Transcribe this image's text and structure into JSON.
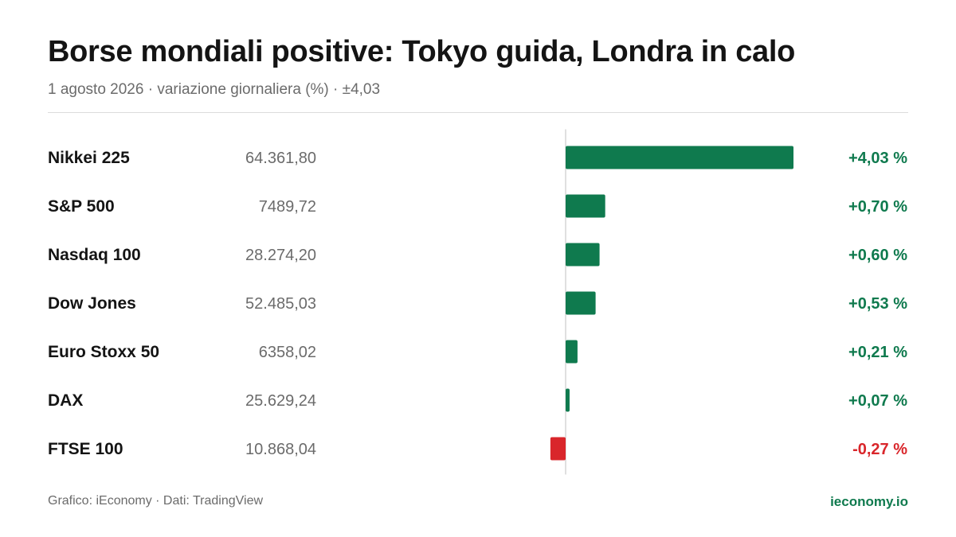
{
  "header": {
    "title": "Borse mondiali positive: Tokyo guida, Londra in calo",
    "subtitle": "1 agosto 2026 · variazione giornaliera (%) · ±4,03"
  },
  "footer": {
    "source": "Grafico: iEconomy · Dati: TradingView",
    "brand": "ieconomy.io"
  },
  "colors": {
    "positive": "#0f7a4e",
    "negative": "#d9262b",
    "axis": "#d6d6d6",
    "label": "#141414",
    "value": "#6b6b6b"
  },
  "chart_data": {
    "type": "bar",
    "orientation": "horizontal",
    "title": "Borse mondiali positive: Tokyo guida, Londra in calo",
    "subtitle": "1 agosto 2026 · variazione giornaliera (%) · ±4,03",
    "xlim": [
      -4.03,
      4.03
    ],
    "grid": false,
    "legend": "none",
    "rows": [
      {
        "index": "Nikkei 225",
        "level": "64.361,80",
        "change": 4.03,
        "change_label": "+4,03 %"
      },
      {
        "index": "S&P 500",
        "level": "7489,72",
        "change": 0.7,
        "change_label": "+0,70 %"
      },
      {
        "index": "Nasdaq 100",
        "level": "28.274,20",
        "change": 0.6,
        "change_label": "+0,60 %"
      },
      {
        "index": "Dow Jones",
        "level": "52.485,03",
        "change": 0.53,
        "change_label": "+0,53 %"
      },
      {
        "index": "Euro Stoxx 50",
        "level": "6358,02",
        "change": 0.21,
        "change_label": "+0,21 %"
      },
      {
        "index": "DAX",
        "level": "25.629,24",
        "change": 0.07,
        "change_label": "+0,07 %"
      },
      {
        "index": "FTSE 100",
        "level": "10.868,04",
        "change": -0.27,
        "change_label": "-0,27 %"
      }
    ]
  }
}
